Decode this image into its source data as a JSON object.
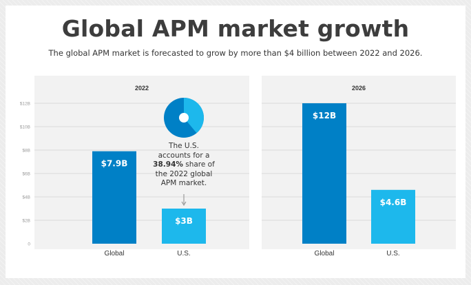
{
  "title": "Global APM market growth",
  "subtitle": "The global APM market is forecasted to grow by more than $4 billion between 2022 and 2026.",
  "colors": {
    "global": "#0080c6",
    "us": "#1db8ec",
    "panel": "#f2f2f2",
    "grid": "#dadada"
  },
  "callout": {
    "pre": "The U.S. accounts for a ",
    "highlight": "38.94%",
    "post": " share of the 2022 global APM market.",
    "pie_share": 0.3894
  },
  "chart_data": [
    {
      "type": "bar",
      "title": "2022",
      "categories": [
        "Global",
        "U.S."
      ],
      "values": [
        7.9,
        3.0
      ],
      "value_labels": [
        "$7.9B",
        "$3B"
      ],
      "ylim": [
        0,
        12
      ],
      "yticks": [
        0,
        2,
        4,
        6,
        8,
        10,
        12
      ],
      "ytick_labels": [
        "0",
        "$2B",
        "$4B",
        "$6B",
        "$8B",
        "$10B",
        "$12B"
      ],
      "grid": true
    },
    {
      "type": "bar",
      "title": "2026",
      "categories": [
        "Global",
        "U.S."
      ],
      "values": [
        12,
        4.6
      ],
      "value_labels": [
        "$12B",
        "$4.6B"
      ],
      "ylim": [
        0,
        12
      ],
      "yticks": [
        0,
        2,
        4,
        6,
        8,
        10,
        12
      ],
      "grid": true
    }
  ]
}
